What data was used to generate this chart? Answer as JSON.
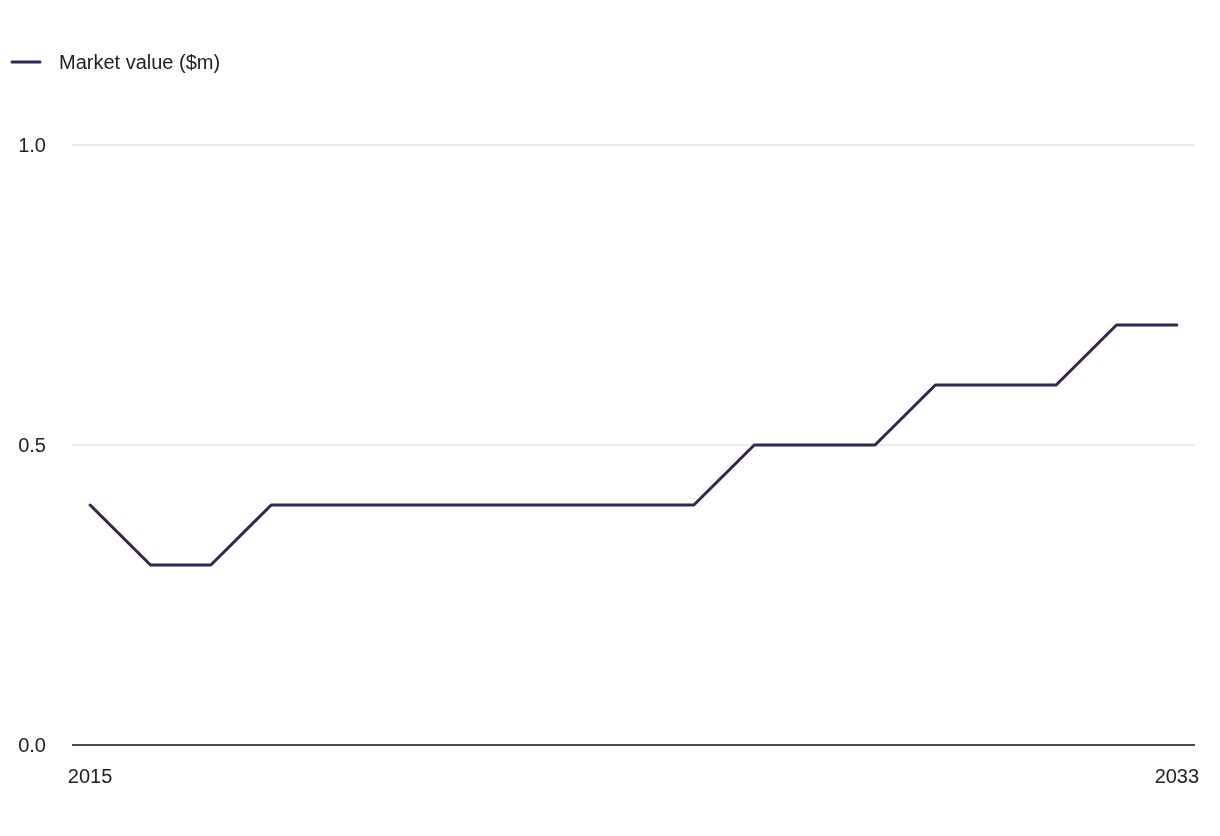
{
  "chart_data": {
    "type": "line",
    "x": [
      2015,
      2016,
      2017,
      2018,
      2019,
      2020,
      2021,
      2022,
      2023,
      2024,
      2025,
      2026,
      2027,
      2028,
      2029,
      2030,
      2031,
      2032,
      2033
    ],
    "series": [
      {
        "name": "Market value ($m)",
        "color": "#35254f",
        "values": [
          0.4,
          0.3,
          0.3,
          0.4,
          0.4,
          0.4,
          0.4,
          0.4,
          0.4,
          0.4,
          0.4,
          0.5,
          0.5,
          0.5,
          0.6,
          0.6,
          0.6,
          0.7,
          0.7
        ]
      }
    ],
    "xlim": [
      2014.7,
      2033.3
    ],
    "xticks": [
      2015,
      2033
    ],
    "ylim": [
      0,
      1
    ],
    "yticks": [
      {
        "value": 0,
        "label": "0.0"
      },
      {
        "value": 0.5,
        "label": "0.5"
      },
      {
        "value": 1,
        "label": "1.0"
      }
    ],
    "grid": "y",
    "legend": "top left",
    "marker": "none",
    "line_style": "solid"
  }
}
